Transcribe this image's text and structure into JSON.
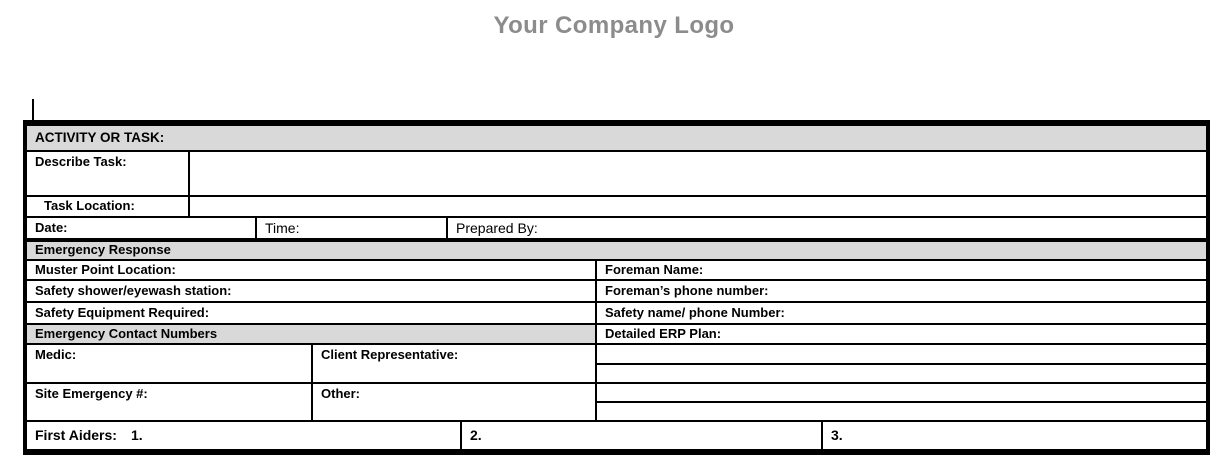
{
  "logo": {
    "text": "Your Company Logo"
  },
  "colors": {
    "header_bg": "#d9d9d9",
    "logo_gray": "#8c8c8c",
    "border": "#000000"
  },
  "form": {
    "activity_header": "ACTIVITY OR TASK:",
    "describe_task": "Describe Task:",
    "task_location": "Task Location:",
    "date": "Date:",
    "time": "Time:",
    "prepared_by": "Prepared By:",
    "emergency_response": "Emergency Response",
    "muster_point": "Muster Point Location:",
    "foreman_name": "Foreman Name:",
    "safety_shower": "Safety shower/eyewash station:",
    "foreman_phone": "Foreman’s phone number:",
    "safety_equipment": "Safety Equipment Required:",
    "safety_name_phone": "Safety name/ phone Number:",
    "emergency_contacts": "Emergency Contact Numbers",
    "detailed_erp": "Detailed ERP Plan:",
    "medic": "Medic:",
    "client_representative": "Client Representative:",
    "site_emergency": "Site Emergency #:",
    "other": "Other:",
    "first_aiders": "First Aiders:",
    "aider_1": "1.",
    "aider_2": "2.",
    "aider_3": "3."
  }
}
